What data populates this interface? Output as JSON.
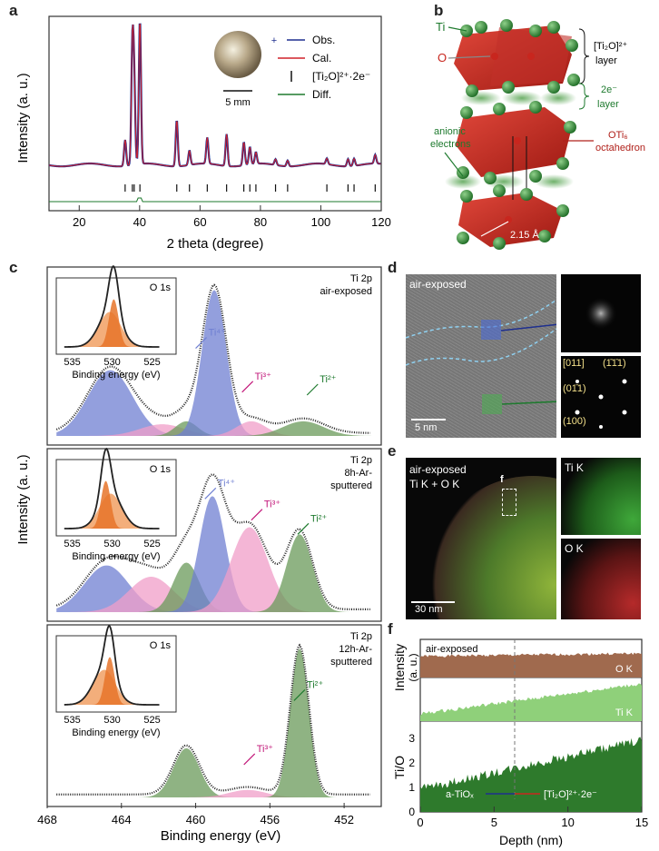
{
  "panel_labels": {
    "a": "a",
    "b": "b",
    "c": "c",
    "d": "d",
    "e": "e",
    "f": "f"
  },
  "panel_a": {
    "ylabel": "Intensity (a. u.)",
    "xlabel": "2 theta (degree)",
    "xticks": [
      "20",
      "40",
      "60",
      "80",
      "100",
      "120"
    ],
    "legend": [
      {
        "label": "Obs.",
        "color": "#1f2f8f"
      },
      {
        "label": "Cal.",
        "color": "#d0202a"
      },
      {
        "label": "[Ti₂O]²⁺·2e⁻",
        "color": "#111111"
      },
      {
        "label": "Diff.",
        "color": "#1e7a2e"
      }
    ],
    "scale_bar": "5 mm"
  },
  "panel_b": {
    "labels": {
      "ti": "Ti",
      "o": "O",
      "layer1": "[Ti₂O]²⁺",
      "layer1b": "layer",
      "layer2": "2e⁻",
      "layer2b": "layer",
      "anionic1": "anionic",
      "anionic2": "electrons",
      "oti1": "OTi₆",
      "oti2": "octahedron",
      "dist": "2.15 Å"
    }
  },
  "panel_c": {
    "ylabel": "Intensity (a. u.)",
    "xlabel": "Binding energy (eV)",
    "xticks": [
      "468",
      "464",
      "460",
      "456",
      "452"
    ],
    "inset_title": "O 1s",
    "inset_xlabel": "Binding energy (eV)",
    "inset_ticks": [
      "535",
      "530",
      "525"
    ],
    "subpanels": [
      {
        "title1": "Ti 2p",
        "title2": "air-exposed",
        "title3": "",
        "labels": [
          "Ti⁴⁺",
          "Ti³⁺",
          "Ti²⁺"
        ]
      },
      {
        "title1": "Ti 2p",
        "title2": "8h-Ar-",
        "title3": "sputtered",
        "labels": [
          "Ti⁴⁺",
          "Ti³⁺",
          "Ti²⁺"
        ]
      },
      {
        "title1": "Ti 2p",
        "title2": "12h-Ar-",
        "title3": "sputtered",
        "labels": [
          "Ti³⁺",
          "Ti²⁺"
        ]
      }
    ]
  },
  "panel_d": {
    "label": "air-exposed",
    "scale": "5 nm",
    "spots": [
      "[011]",
      "(1̄1̄1)",
      "(01̄1)",
      "(100)"
    ]
  },
  "panel_e": {
    "label1": "air-exposed",
    "label2": "Ti K + O K",
    "f_marker": "f",
    "scale": "30 nm",
    "map1": "Ti K",
    "map2": "O K"
  },
  "panel_f": {
    "label": "air-exposed",
    "ylabel1": "Intensity",
    "ylabel2": "(a. u.)",
    "ylabel3": "Ti/O",
    "ok": "O K",
    "tik": "Ti K",
    "marker": "6.2 nm",
    "left_phase": "a-TiOₓ",
    "right_phase": "[Ti₂O]²⁺·2e⁻",
    "xlabel": "Depth (nm)",
    "xticks": [
      "0",
      "5",
      "10",
      "15"
    ],
    "yticks": [
      "0",
      "1",
      "2",
      "3"
    ]
  },
  "colors": {
    "blue": "#6f7fd2",
    "pink": "#f09ec8",
    "green": "#6a9a5a",
    "orange": "#f1a064",
    "red": "#c8261e"
  }
}
